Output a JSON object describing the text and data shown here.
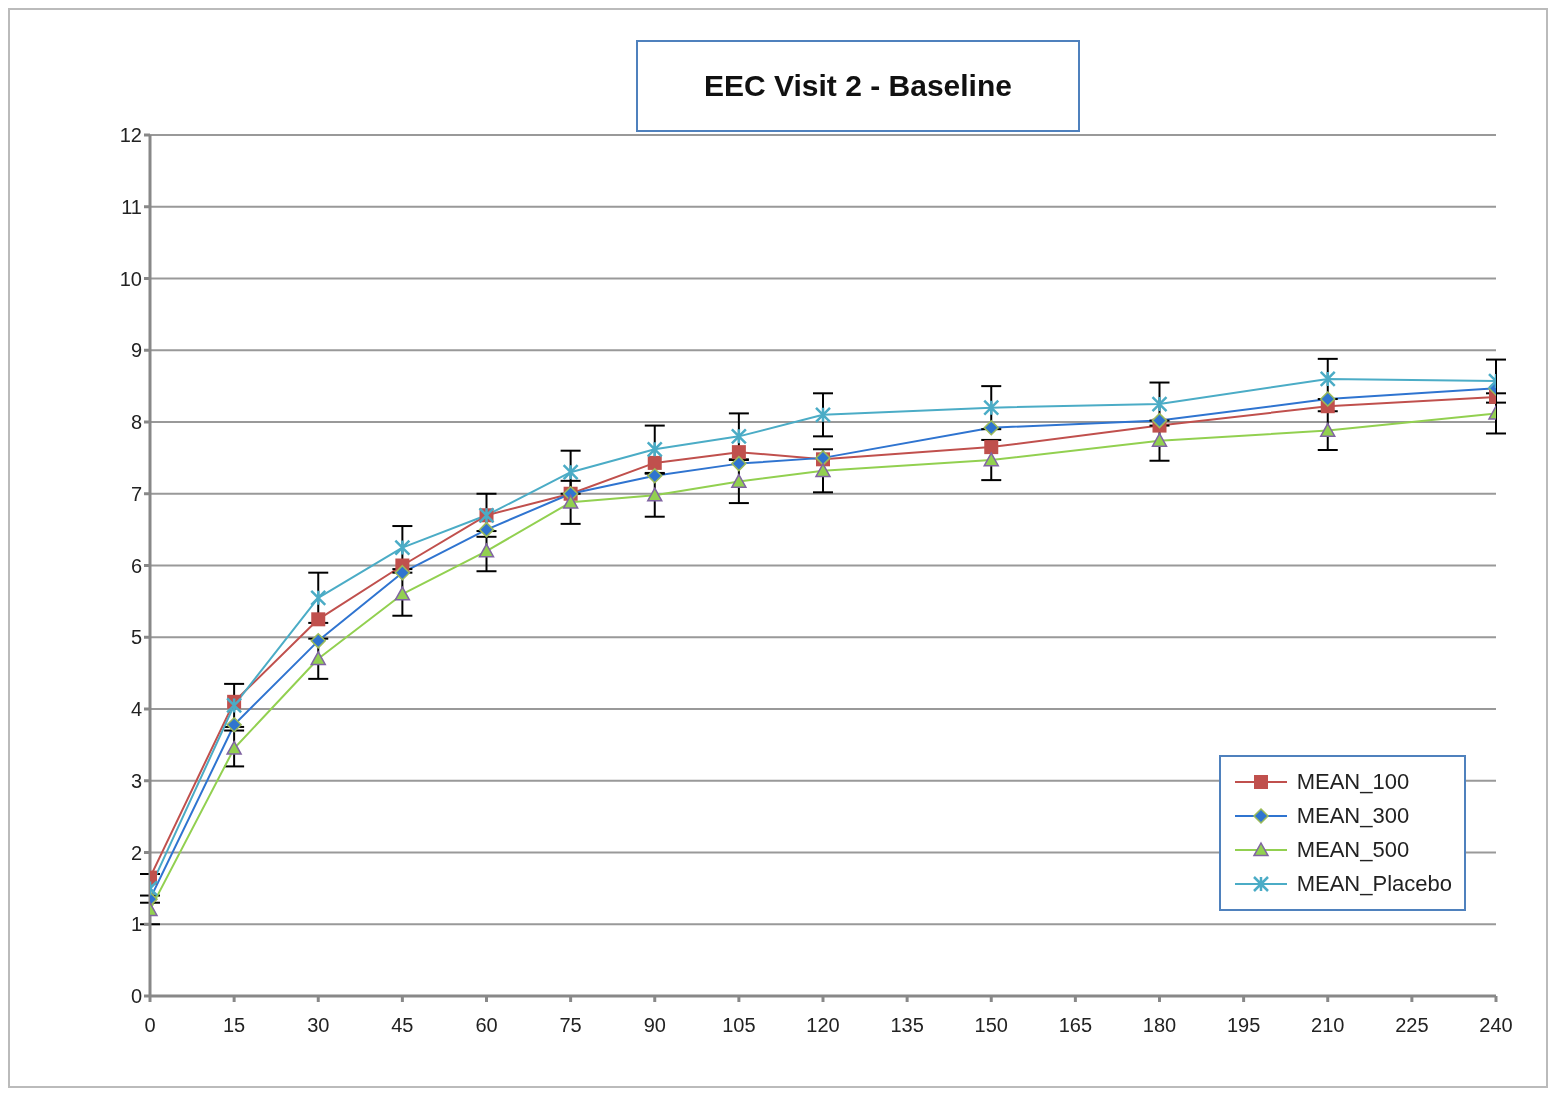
{
  "chart_data": {
    "type": "line",
    "title": "EEC Visit 2 - Baseline",
    "x": [
      0,
      15,
      30,
      45,
      60,
      75,
      90,
      105,
      120,
      150,
      180,
      210,
      240
    ],
    "series": [
      {
        "name": "MEAN_100",
        "color": "#c0504d",
        "marker": "square",
        "values": [
          1.65,
          4.1,
          5.25,
          6.0,
          6.7,
          7.0,
          7.43,
          7.58,
          7.48,
          7.65,
          7.95,
          8.22,
          8.35
        ]
      },
      {
        "name": "MEAN_300",
        "color": "#2f74d0",
        "marker": "diamond",
        "values": [
          1.35,
          3.78,
          4.95,
          5.9,
          6.5,
          7.0,
          7.25,
          7.42,
          7.5,
          7.92,
          8.02,
          8.32,
          8.47
        ]
      },
      {
        "name": "MEAN_500",
        "color": "#92d050",
        "marker": "triangle",
        "values": [
          1.2,
          3.45,
          4.7,
          5.6,
          6.2,
          6.88,
          6.98,
          7.17,
          7.32,
          7.47,
          7.74,
          7.88,
          8.12
        ],
        "errors": [
          0.2,
          0.25,
          0.28,
          0.3,
          0.28,
          0.3,
          0.3,
          0.3,
          0.3,
          0.28,
          0.28,
          0.27,
          0.28
        ]
      },
      {
        "name": "MEAN_Placebo",
        "color": "#4bacc6",
        "marker": "cross",
        "values": [
          1.5,
          4.05,
          5.55,
          6.25,
          6.7,
          7.3,
          7.62,
          7.8,
          8.1,
          8.2,
          8.25,
          8.6,
          8.57
        ],
        "errors": [
          0.2,
          0.3,
          0.35,
          0.3,
          0.3,
          0.3,
          0.33,
          0.32,
          0.3,
          0.3,
          0.3,
          0.28,
          0.3
        ]
      }
    ],
    "xlim": [
      0,
      240
    ],
    "xticks": [
      0,
      15,
      30,
      45,
      60,
      75,
      90,
      105,
      120,
      135,
      150,
      165,
      180,
      195,
      210,
      225,
      240
    ],
    "ylim": [
      0,
      12
    ],
    "yticks": [
      0,
      1,
      2,
      3,
      4,
      5,
      6,
      7,
      8,
      9,
      10,
      11,
      12
    ],
    "grid": "y",
    "legend": "bottom right"
  }
}
